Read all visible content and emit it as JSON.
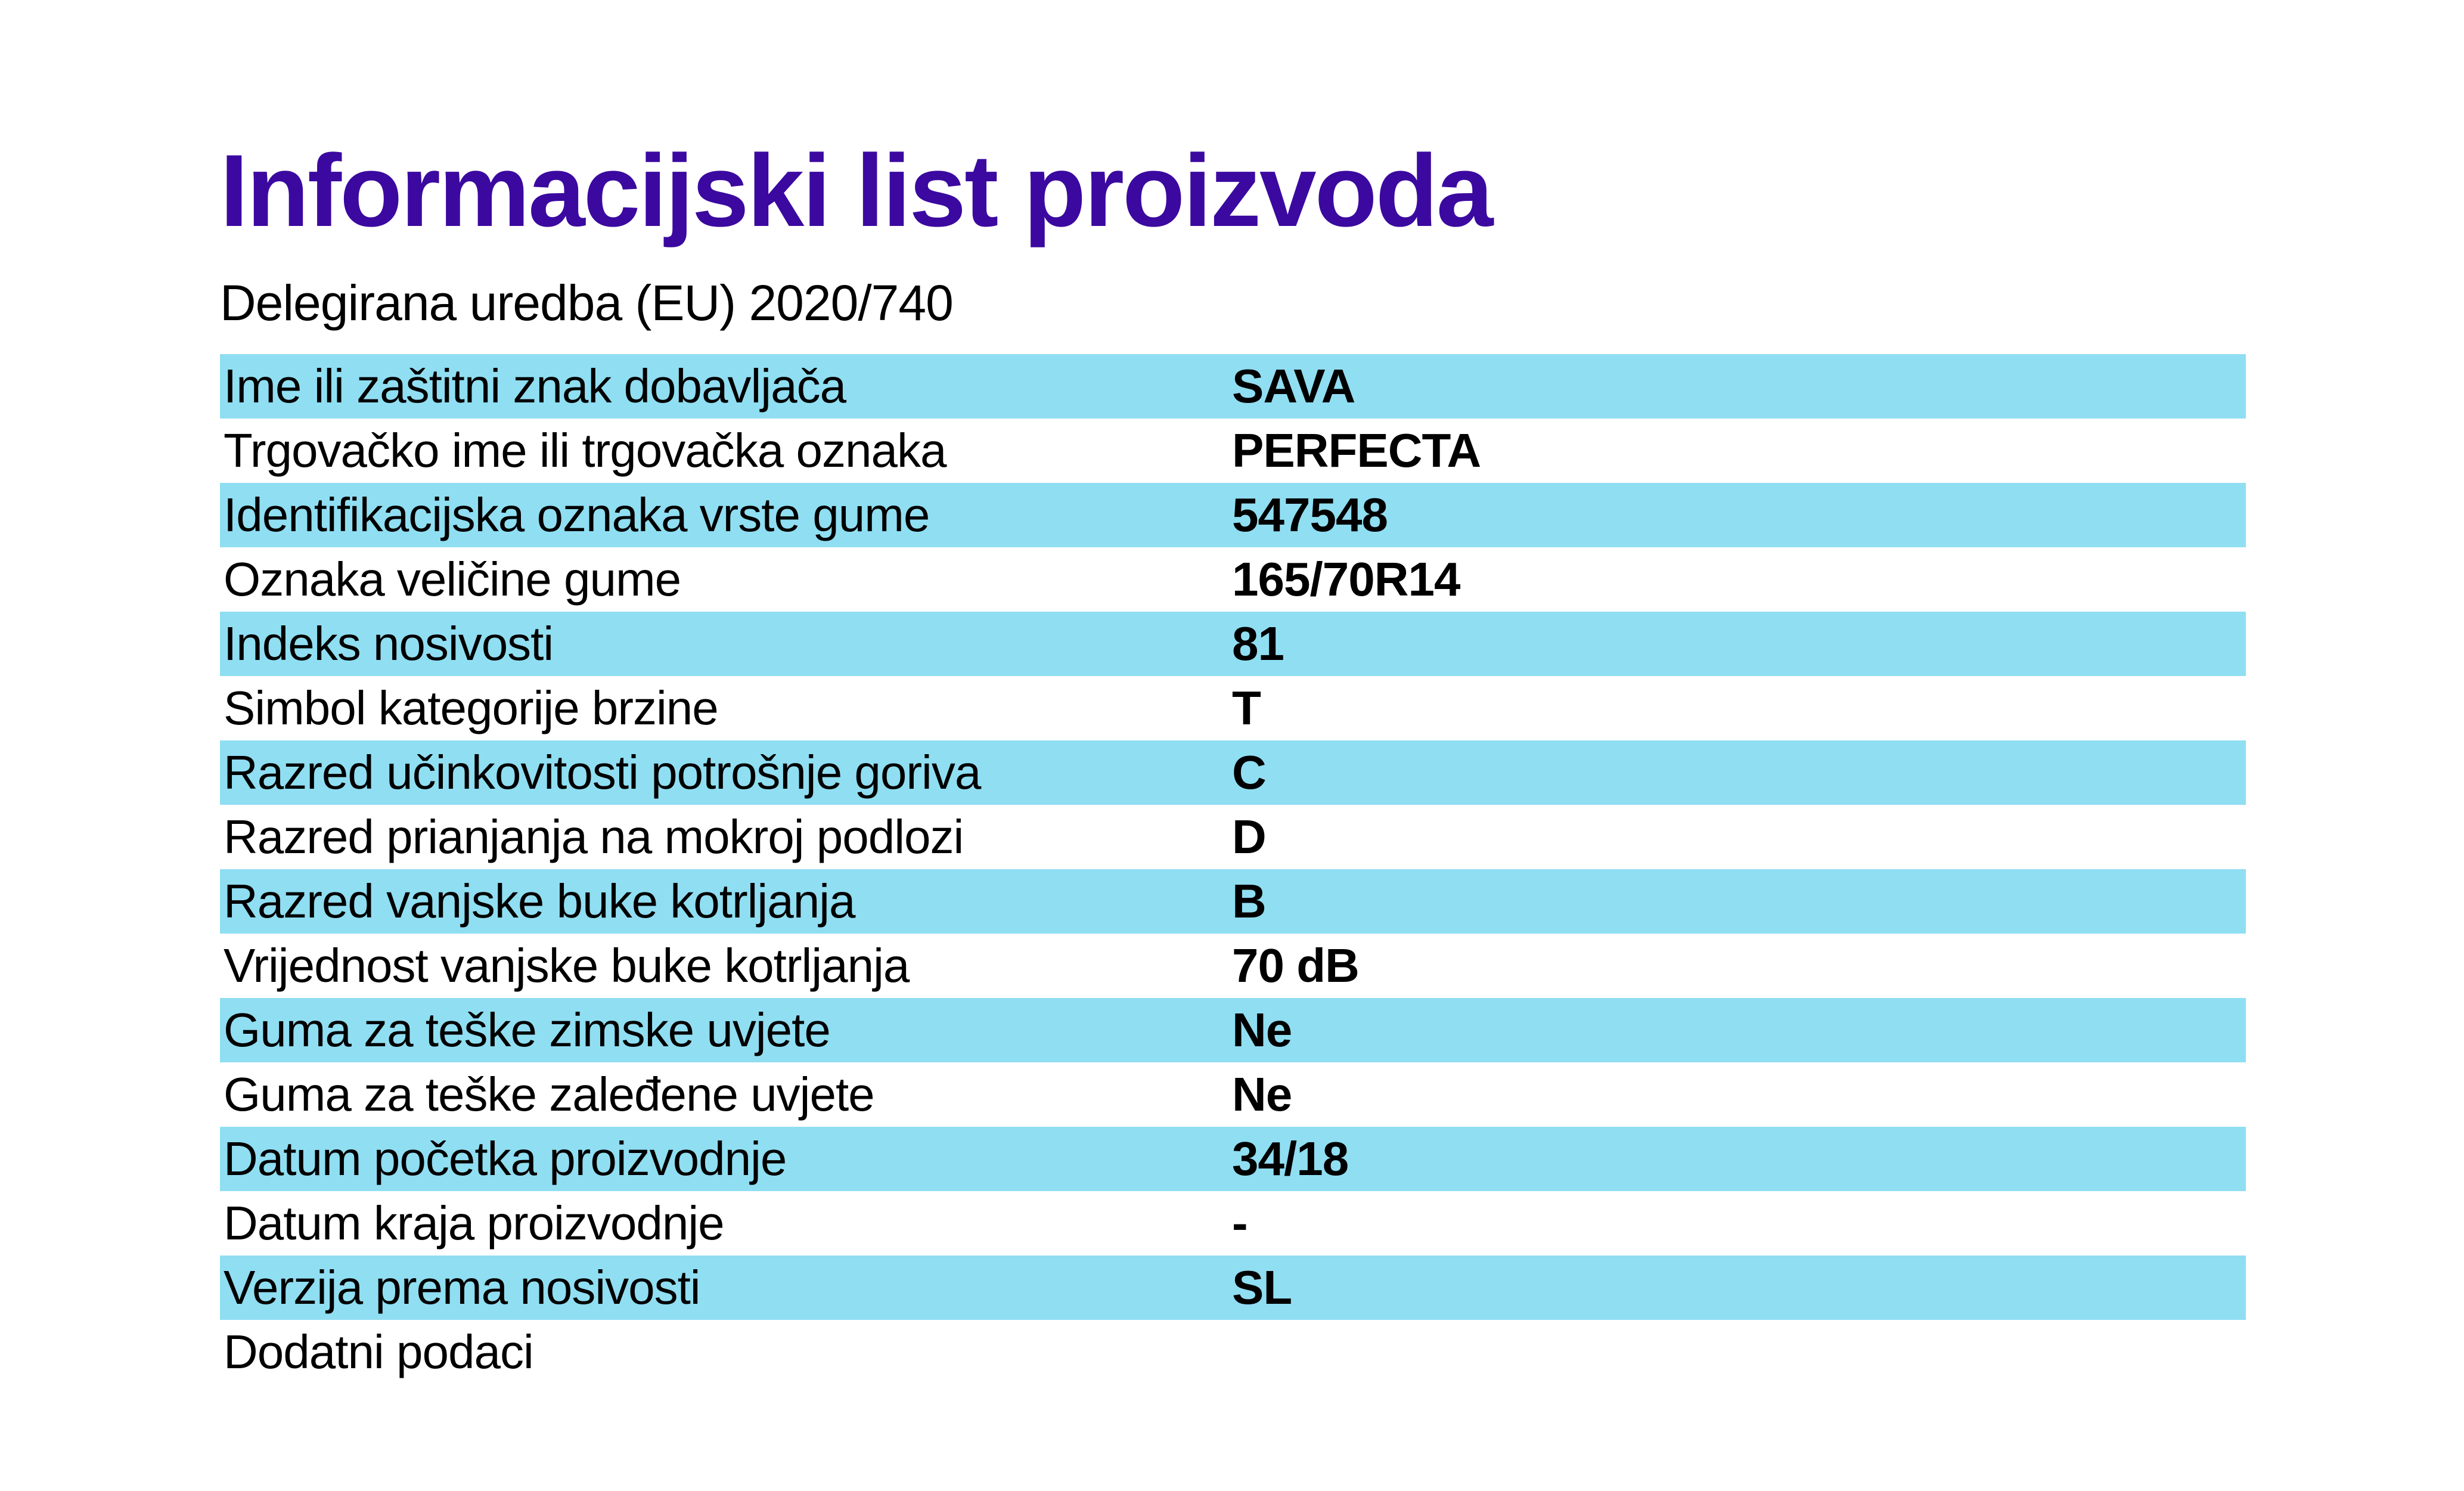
{
  "page": {
    "title": "Informacijski list proizvoda",
    "subtitle": "Delegirana uredba (EU) 2020/740"
  },
  "colors": {
    "title": "#3B09A0",
    "row_highlight": "#90DEF2",
    "text": "#000000",
    "background": "#FFFFFF"
  },
  "table": {
    "rows": [
      {
        "label": "Ime ili zaštitni znak dobavljača",
        "value": "SAVA",
        "highlighted": true
      },
      {
        "label": "Trgovačko ime ili trgovačka oznaka",
        "value": "PERFECTA",
        "highlighted": false
      },
      {
        "label": "Identifikacijska oznaka vrste gume",
        "value": "547548",
        "highlighted": true
      },
      {
        "label": "Oznaka veličine gume",
        "value": "165/70R14",
        "highlighted": false
      },
      {
        "label": "Indeks nosivosti",
        "value": "81",
        "highlighted": true
      },
      {
        "label": "Simbol kategorije brzine",
        "value": "T",
        "highlighted": false
      },
      {
        "label": "Razred učinkovitosti potrošnje goriva",
        "value": "C",
        "highlighted": true
      },
      {
        "label": "Razred prianjanja na mokroj podlozi",
        "value": "D",
        "highlighted": false
      },
      {
        "label": "Razred vanjske buke kotrljanja",
        "value": "B",
        "highlighted": true
      },
      {
        "label": "Vrijednost vanjske buke kotrljanja",
        "value": "70 dB",
        "highlighted": false
      },
      {
        "label": "Guma za teške zimske uvjete",
        "value": "Ne",
        "highlighted": true
      },
      {
        "label": "Guma za teške zaleđene uvjete",
        "value": "Ne",
        "highlighted": false
      },
      {
        "label": "Datum početka proizvodnje",
        "value": "34/18",
        "highlighted": true
      },
      {
        "label": "Datum kraja proizvodnje",
        "value": "-",
        "highlighted": false
      },
      {
        "label": "Verzija prema nosivosti",
        "value": "SL",
        "highlighted": true
      },
      {
        "label": "Dodatni podaci",
        "value": "",
        "highlighted": false
      }
    ]
  }
}
